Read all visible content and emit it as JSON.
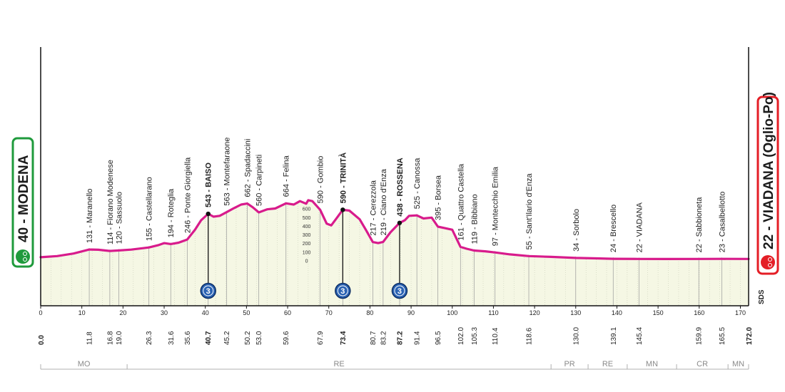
{
  "chart_data": {
    "type": "area",
    "x_unit": "km",
    "y_unit": "m",
    "xlim": [
      0,
      172
    ],
    "start": {
      "label": "40 - MODENA",
      "km": "0.0",
      "color": "#1f9a3c"
    },
    "finish": {
      "label": "22 - VIADANA (Oglio-Po)",
      "km": "172.0",
      "color": "#e41e26"
    },
    "profile_color": "#d81b8c",
    "fill_color": "#f5f7e4",
    "profile": [
      [
        0,
        42
      ],
      [
        4,
        55
      ],
      [
        8,
        85
      ],
      [
        11.8,
        131
      ],
      [
        14,
        128
      ],
      [
        16.8,
        114
      ],
      [
        19,
        120
      ],
      [
        22,
        130
      ],
      [
        26.3,
        155
      ],
      [
        28.5,
        180
      ],
      [
        30,
        205
      ],
      [
        31.6,
        194
      ],
      [
        33.5,
        210
      ],
      [
        35.6,
        246
      ],
      [
        37.5,
        360
      ],
      [
        39,
        470
      ],
      [
        40.7,
        543
      ],
      [
        42,
        510
      ],
      [
        43.5,
        520
      ],
      [
        45.2,
        563
      ],
      [
        47,
        610
      ],
      [
        48.7,
        650
      ],
      [
        50.2,
        662
      ],
      [
        51.5,
        620
      ],
      [
        53,
        560
      ],
      [
        55,
        595
      ],
      [
        57,
        605
      ],
      [
        59.6,
        664
      ],
      [
        61.5,
        650
      ],
      [
        63,
        690
      ],
      [
        64.5,
        660
      ],
      [
        65,
        700
      ],
      [
        66,
        690
      ],
      [
        67.9,
        590
      ],
      [
        69.5,
        430
      ],
      [
        70.6,
        410
      ],
      [
        72,
        500
      ],
      [
        73.4,
        590
      ],
      [
        75,
        580
      ],
      [
        77.5,
        480
      ],
      [
        79,
        360
      ],
      [
        80.7,
        217
      ],
      [
        82,
        205
      ],
      [
        83.2,
        219
      ],
      [
        85,
        330
      ],
      [
        87.2,
        438
      ],
      [
        88.5,
        470
      ],
      [
        89.5,
        520
      ],
      [
        91.4,
        525
      ],
      [
        93,
        490
      ],
      [
        95,
        500
      ],
      [
        96.5,
        395
      ],
      [
        98,
        380
      ],
      [
        100,
        360
      ],
      [
        102,
        161
      ],
      [
        103.5,
        140
      ],
      [
        105.3,
        119
      ],
      [
        108,
        110
      ],
      [
        110.4,
        97
      ],
      [
        114,
        75
      ],
      [
        118.6,
        55
      ],
      [
        124,
        46
      ],
      [
        130,
        34
      ],
      [
        135,
        29
      ],
      [
        139.1,
        24
      ],
      [
        145.4,
        22
      ],
      [
        152,
        21
      ],
      [
        159.9,
        22
      ],
      [
        165.5,
        23
      ],
      [
        172,
        22
      ]
    ],
    "climbs": [
      {
        "km": 40.7,
        "elev": 543,
        "category": "3"
      },
      {
        "km": 73.4,
        "elev": 590,
        "category": "3"
      },
      {
        "km": 87.2,
        "elev": 438,
        "category": "3"
      }
    ],
    "places": [
      {
        "km": 11.8,
        "elev": 131,
        "label": "131 - Maranello",
        "bold": false
      },
      {
        "km": 16.8,
        "elev": 114,
        "label": "114 - Fiorano Modenese",
        "bold": false
      },
      {
        "km": 19.0,
        "elev": 120,
        "label": "120 - Sassuolo",
        "bold": false
      },
      {
        "km": 26.3,
        "elev": 155,
        "label": "155 - Castellarano",
        "bold": false
      },
      {
        "km": 31.6,
        "elev": 194,
        "label": "194 - Roteglia",
        "bold": false
      },
      {
        "km": 35.6,
        "elev": 246,
        "label": "246 - Ponte Giorgiella",
        "bold": false
      },
      {
        "km": 40.7,
        "elev": 543,
        "label": "543 - BAISO",
        "bold": true
      },
      {
        "km": 45.2,
        "elev": 563,
        "label": "563 - Montefaraone",
        "bold": false
      },
      {
        "km": 50.2,
        "elev": 662,
        "label": "662 - Spadaccini",
        "bold": false
      },
      {
        "km": 53.0,
        "elev": 560,
        "label": "560 - Carpineti",
        "bold": false
      },
      {
        "km": 59.6,
        "elev": 664,
        "label": "664 - Felina",
        "bold": false
      },
      {
        "km": 67.9,
        "elev": 590,
        "label": "590 - Gombio",
        "bold": false
      },
      {
        "km": 73.4,
        "elev": 590,
        "label": "590 - TRINITÀ",
        "bold": true
      },
      {
        "km": 80.7,
        "elev": 217,
        "label": "217 - Cerezzola",
        "bold": false
      },
      {
        "km": 83.2,
        "elev": 219,
        "label": "219 - Ciano d'Enza",
        "bold": false
      },
      {
        "km": 87.2,
        "elev": 438,
        "label": "438 - ROSSENA",
        "bold": true
      },
      {
        "km": 91.4,
        "elev": 525,
        "label": "525 - Canossa",
        "bold": false
      },
      {
        "km": 96.5,
        "elev": 395,
        "label": "395 - Borsea",
        "bold": false
      },
      {
        "km": 102.0,
        "elev": 161,
        "label": "161 - Quattro Castella",
        "bold": false
      },
      {
        "km": 105.3,
        "elev": 119,
        "label": "119 - Bibbiano",
        "bold": false
      },
      {
        "km": 110.4,
        "elev": 97,
        "label": "97 - Montecchio Emilia",
        "bold": false
      },
      {
        "km": 118.6,
        "elev": 55,
        "label": "55 - Sant'Ilario d'Enza",
        "bold": false
      },
      {
        "km": 130.0,
        "elev": 34,
        "label": "34 - Sorbolo",
        "bold": false
      },
      {
        "km": 139.1,
        "elev": 24,
        "label": "24 - Brescello",
        "bold": false
      },
      {
        "km": 145.4,
        "elev": 22,
        "label": "22 - VIADANA",
        "bold": false
      },
      {
        "km": 159.9,
        "elev": 22,
        "label": "22 - Sabbioneta",
        "bold": false
      },
      {
        "km": 165.5,
        "elev": 23,
        "label": "23 - Casalbellotto",
        "bold": false
      }
    ],
    "distance_labels": [
      {
        "km": 11.8,
        "text": "11.8",
        "bold": false
      },
      {
        "km": 16.8,
        "text": "16.8",
        "bold": false
      },
      {
        "km": 19.0,
        "text": "19.0",
        "bold": false
      },
      {
        "km": 26.3,
        "text": "26.3",
        "bold": false
      },
      {
        "km": 31.6,
        "text": "31.6",
        "bold": false
      },
      {
        "km": 35.6,
        "text": "35.6",
        "bold": false
      },
      {
        "km": 40.7,
        "text": "40.7",
        "bold": true
      },
      {
        "km": 45.2,
        "text": "45.2",
        "bold": false
      },
      {
        "km": 50.2,
        "text": "50.2",
        "bold": false
      },
      {
        "km": 53.0,
        "text": "53.0",
        "bold": false
      },
      {
        "km": 59.6,
        "text": "59.6",
        "bold": false
      },
      {
        "km": 67.9,
        "text": "67.9",
        "bold": false
      },
      {
        "km": 73.4,
        "text": "73.4",
        "bold": true
      },
      {
        "km": 80.7,
        "text": "80.7",
        "bold": false
      },
      {
        "km": 83.2,
        "text": "83.2",
        "bold": false
      },
      {
        "km": 87.2,
        "text": "87.2",
        "bold": true
      },
      {
        "km": 91.4,
        "text": "91.4",
        "bold": false
      },
      {
        "km": 96.5,
        "text": "96.5",
        "bold": false
      },
      {
        "km": 102.0,
        "text": "102.0",
        "bold": false
      },
      {
        "km": 105.3,
        "text": "105.3",
        "bold": false
      },
      {
        "km": 110.4,
        "text": "110.4",
        "bold": false
      },
      {
        "km": 118.6,
        "text": "118.6",
        "bold": false
      },
      {
        "km": 130.0,
        "text": "130.0",
        "bold": false
      },
      {
        "km": 139.1,
        "text": "139.1",
        "bold": false
      },
      {
        "km": 145.4,
        "text": "145.4",
        "bold": false
      },
      {
        "km": 159.9,
        "text": "159.9",
        "bold": false
      },
      {
        "km": 165.5,
        "text": "165.5",
        "bold": false
      }
    ],
    "x_ticks": [
      0,
      10,
      20,
      30,
      40,
      50,
      60,
      70,
      80,
      90,
      100,
      110,
      120,
      130,
      140,
      150,
      160,
      170
    ],
    "elevation_scale": [
      "600",
      "500",
      "400",
      "300",
      "200",
      "100",
      "0"
    ],
    "regions": [
      {
        "name": "MO",
        "from": 0,
        "to": 21
      },
      {
        "name": "RE",
        "from": 21,
        "to": 124
      },
      {
        "name": "PR",
        "from": 124,
        "to": 133
      },
      {
        "name": "RE",
        "from": 133,
        "to": 142.5
      },
      {
        "name": "MN",
        "from": 142.5,
        "to": 154.5
      },
      {
        "name": "CR",
        "from": 154.5,
        "to": 167
      },
      {
        "name": "MN",
        "from": 167,
        "to": 172
      }
    ],
    "sds_label": "SDS"
  }
}
